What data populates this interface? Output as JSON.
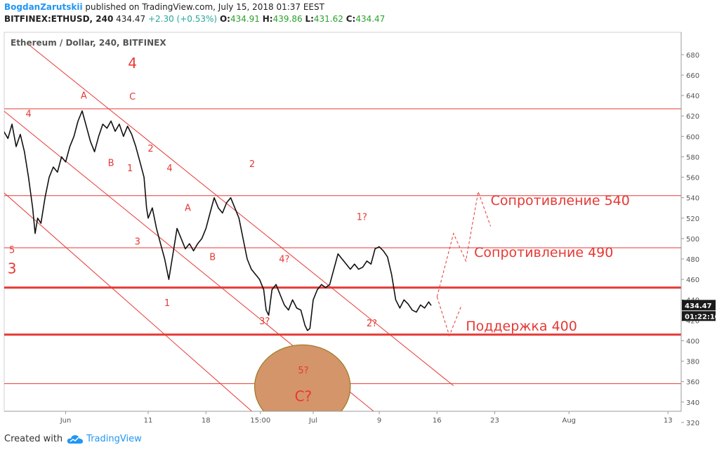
{
  "header": {
    "author": "BogdanZarutskii",
    "published": "published on TradingView.com, July 15, 2018 01:37 EEST",
    "symbol": "BITFINEX:ETHUSD, 240",
    "last": "434.47",
    "change": "+2.30 (+0.53%)",
    "o_label": "O:",
    "o": "434.91",
    "h_label": "H:",
    "h": "439.86",
    "l_label": "L:",
    "l": "431.62",
    "c_label": "C:",
    "c": "434.47"
  },
  "footer": {
    "created_with": "Created with",
    "brand": "TradingView"
  },
  "colors": {
    "red": "#e53935",
    "candle": "#111111",
    "axis": "#555555",
    "circle_fill": "#d4956a",
    "circle_stroke": "#9c7a1f",
    "brand": "#2196f3"
  },
  "chart_data": {
    "type": "line",
    "title": "Ethereum / Dollar, 240, BITFINEX",
    "ylim": [
      310,
      690
    ],
    "y_ticks": [
      320,
      340,
      360,
      380,
      400,
      420,
      440,
      460,
      480,
      500,
      520,
      540,
      560,
      580,
      600,
      620,
      640,
      660,
      680
    ],
    "x_ticks": [
      {
        "label": "Jun",
        "day": 1
      },
      {
        "label": "11",
        "day": 11
      },
      {
        "label": "18",
        "day": 18
      },
      {
        "label": "15:00",
        "day": 24.6
      },
      {
        "label": "Jul",
        "day": 31
      },
      {
        "label": "9",
        "day": 39
      },
      {
        "label": "16",
        "day": 46
      },
      {
        "label": "23",
        "day": 53
      },
      {
        "label": "Aug",
        "day": 62
      },
      {
        "label": "13",
        "day": 74
      }
    ],
    "price_path": [
      [
        -6.5,
        605
      ],
      [
        -6,
        598
      ],
      [
        -5.5,
        612
      ],
      [
        -5,
        590
      ],
      [
        -4.5,
        602
      ],
      [
        -4,
        585
      ],
      [
        -3.5,
        560
      ],
      [
        -3,
        530
      ],
      [
        -2.7,
        505
      ],
      [
        -2.4,
        520
      ],
      [
        -2,
        515
      ],
      [
        -1.5,
        540
      ],
      [
        -1,
        560
      ],
      [
        -0.5,
        570
      ],
      [
        0,
        565
      ],
      [
        0.5,
        580
      ],
      [
        1,
        575
      ],
      [
        1.5,
        590
      ],
      [
        2,
        600
      ],
      [
        2.5,
        615
      ],
      [
        3,
        625
      ],
      [
        3.5,
        610
      ],
      [
        4,
        595
      ],
      [
        4.5,
        585
      ],
      [
        5,
        600
      ],
      [
        5.5,
        612
      ],
      [
        6,
        608
      ],
      [
        6.5,
        615
      ],
      [
        7,
        605
      ],
      [
        7.5,
        612
      ],
      [
        8,
        600
      ],
      [
        8.5,
        610
      ],
      [
        9,
        602
      ],
      [
        9.5,
        590
      ],
      [
        10,
        575
      ],
      [
        10.5,
        560
      ],
      [
        10.8,
        530
      ],
      [
        11,
        520
      ],
      [
        11.5,
        530
      ],
      [
        12,
        510
      ],
      [
        12.5,
        495
      ],
      [
        13,
        480
      ],
      [
        13.5,
        460
      ],
      [
        14,
        485
      ],
      [
        14.5,
        510
      ],
      [
        15,
        500
      ],
      [
        15.5,
        490
      ],
      [
        16,
        495
      ],
      [
        16.5,
        488
      ],
      [
        17,
        495
      ],
      [
        17.5,
        500
      ],
      [
        18,
        510
      ],
      [
        18.5,
        525
      ],
      [
        19,
        540
      ],
      [
        19.5,
        530
      ],
      [
        20,
        525
      ],
      [
        20.5,
        535
      ],
      [
        21,
        540
      ],
      [
        21.5,
        530
      ],
      [
        22,
        520
      ],
      [
        22.5,
        500
      ],
      [
        23,
        480
      ],
      [
        23.5,
        470
      ],
      [
        24,
        465
      ],
      [
        24.5,
        460
      ],
      [
        25,
        450
      ],
      [
        25.3,
        430
      ],
      [
        25.6,
        425
      ],
      [
        26,
        450
      ],
      [
        26.5,
        455
      ],
      [
        27,
        445
      ],
      [
        27.5,
        435
      ],
      [
        28,
        430
      ],
      [
        28.5,
        440
      ],
      [
        29,
        432
      ],
      [
        29.5,
        430
      ],
      [
        30,
        415
      ],
      [
        30.3,
        410
      ],
      [
        30.6,
        412
      ],
      [
        31,
        440
      ],
      [
        31.5,
        450
      ],
      [
        32,
        455
      ],
      [
        32.5,
        452
      ],
      [
        33,
        455
      ],
      [
        33.5,
        470
      ],
      [
        34,
        485
      ],
      [
        34.5,
        480
      ],
      [
        35,
        475
      ],
      [
        35.5,
        470
      ],
      [
        36,
        475
      ],
      [
        36.5,
        470
      ],
      [
        37,
        472
      ],
      [
        37.5,
        478
      ],
      [
        38,
        475
      ],
      [
        38.5,
        490
      ],
      [
        39,
        492
      ],
      [
        39.5,
        488
      ],
      [
        40,
        482
      ],
      [
        40.5,
        465
      ],
      [
        41,
        440
      ],
      [
        41.5,
        432
      ],
      [
        42,
        440
      ],
      [
        42.5,
        436
      ],
      [
        43,
        430
      ],
      [
        43.5,
        428
      ],
      [
        44,
        435
      ],
      [
        44.5,
        432
      ],
      [
        45,
        438
      ],
      [
        45.3,
        434.47
      ]
    ],
    "h_lines": [
      {
        "y": 627,
        "width": 1
      },
      {
        "y": 542,
        "width": 1
      },
      {
        "y": 491,
        "width": 1
      },
      {
        "y": 452,
        "width": 3
      },
      {
        "y": 406,
        "width": 3
      },
      {
        "y": 358,
        "width": 1
      }
    ],
    "channel_lines": [
      {
        "from": [
          -3.5,
          690
        ],
        "to": [
          48,
          356
        ]
      },
      {
        "from": [
          -6.5,
          625
        ],
        "to": [
          40,
          320
        ]
      },
      {
        "from": [
          -6.5,
          545
        ],
        "to": [
          26.5,
          310
        ]
      }
    ],
    "projection": [
      [
        46,
        443
      ],
      [
        48,
        505
      ],
      [
        49.5,
        478
      ],
      [
        51,
        546
      ],
      [
        52.5,
        512
      ]
    ],
    "projection_low": [
      [
        46,
        443
      ],
      [
        47.5,
        405
      ],
      [
        49,
        435
      ]
    ],
    "wave_labels": [
      {
        "text": "4",
        "day": 9.1,
        "price": 667,
        "big": true
      },
      {
        "text": "C",
        "day": 9.1,
        "price": 636
      },
      {
        "text": "A",
        "day": 3.2,
        "price": 637
      },
      {
        "text": "4",
        "day": -3.5,
        "price": 619
      },
      {
        "text": "B",
        "day": 6.5,
        "price": 571
      },
      {
        "text": "2",
        "day": 11.3,
        "price": 585
      },
      {
        "text": "1",
        "day": 8.8,
        "price": 566
      },
      {
        "text": "4",
        "day": 13.6,
        "price": 566
      },
      {
        "text": "2",
        "day": 23.6,
        "price": 570
      },
      {
        "text": "A",
        "day": 15.8,
        "price": 527
      },
      {
        "text": "3",
        "day": 9.7,
        "price": 494
      },
      {
        "text": "B",
        "day": 18.8,
        "price": 479
      },
      {
        "text": "5",
        "day": -5.5,
        "price": 486
      },
      {
        "text": "3",
        "day": -5.5,
        "price": 466,
        "big": true
      },
      {
        "text": "4?",
        "day": 27.5,
        "price": 477
      },
      {
        "text": "1",
        "day": 13.3,
        "price": 434
      },
      {
        "text": "3?",
        "day": 25.1,
        "price": 416
      },
      {
        "text": "1?",
        "day": 36.9,
        "price": 518
      },
      {
        "text": "2?",
        "day": 38.1,
        "price": 414
      },
      {
        "text": "5?",
        "day": 29.8,
        "price": 368
      },
      {
        "text": "C?",
        "day": 29.8,
        "price": 341,
        "big": true
      }
    ],
    "annotations": [
      {
        "text": "Сопротивление 540",
        "day": 52.5,
        "price": 533
      },
      {
        "text": "Сопротивление 490",
        "day": 50.5,
        "price": 482
      },
      {
        "text": "Поддержка 400",
        "day": 49.5,
        "price": 410
      }
    ],
    "circle": {
      "day": 29.7,
      "price": 355,
      "rx_days": 5.8,
      "ry_price": 41
    },
    "last_price": {
      "value": "434.47",
      "time": "01:22:10"
    }
  }
}
